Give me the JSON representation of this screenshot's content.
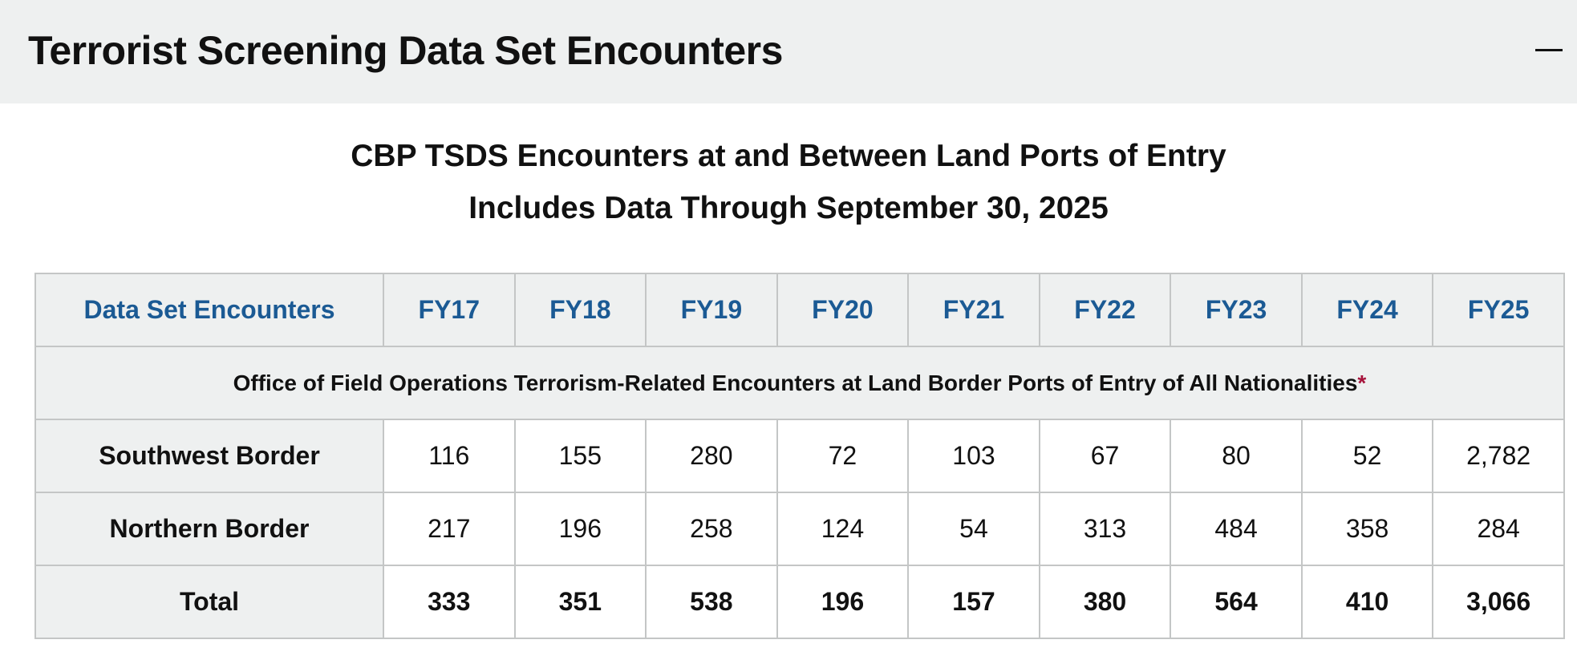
{
  "header": {
    "title": "Terrorist Screening Data Set Encounters"
  },
  "subtitle": [
    "CBP TSDS Encounters at and Between Land Ports of Entry",
    "Includes Data Through September 30, 2025"
  ],
  "table": {
    "columns": [
      "Data Set Encounters",
      "FY17",
      "FY18",
      "FY19",
      "FY20",
      "FY21",
      "FY22",
      "FY23",
      "FY24",
      "FY25"
    ],
    "note": {
      "text": "Office of Field Operations Terrorism-Related Encounters at Land Border Ports of Entry of All Nationalities",
      "marker": "*"
    },
    "rows": [
      [
        "Southwest Border",
        "116",
        "155",
        "280",
        "72",
        "103",
        "67",
        "80",
        "52",
        "2,782"
      ],
      [
        "Northern Border",
        "217",
        "196",
        "258",
        "124",
        "54",
        "313",
        "484",
        "358",
        "284"
      ],
      [
        "Total",
        "333",
        "351",
        "538",
        "196",
        "157",
        "380",
        "564",
        "410",
        "3,066"
      ]
    ]
  }
}
